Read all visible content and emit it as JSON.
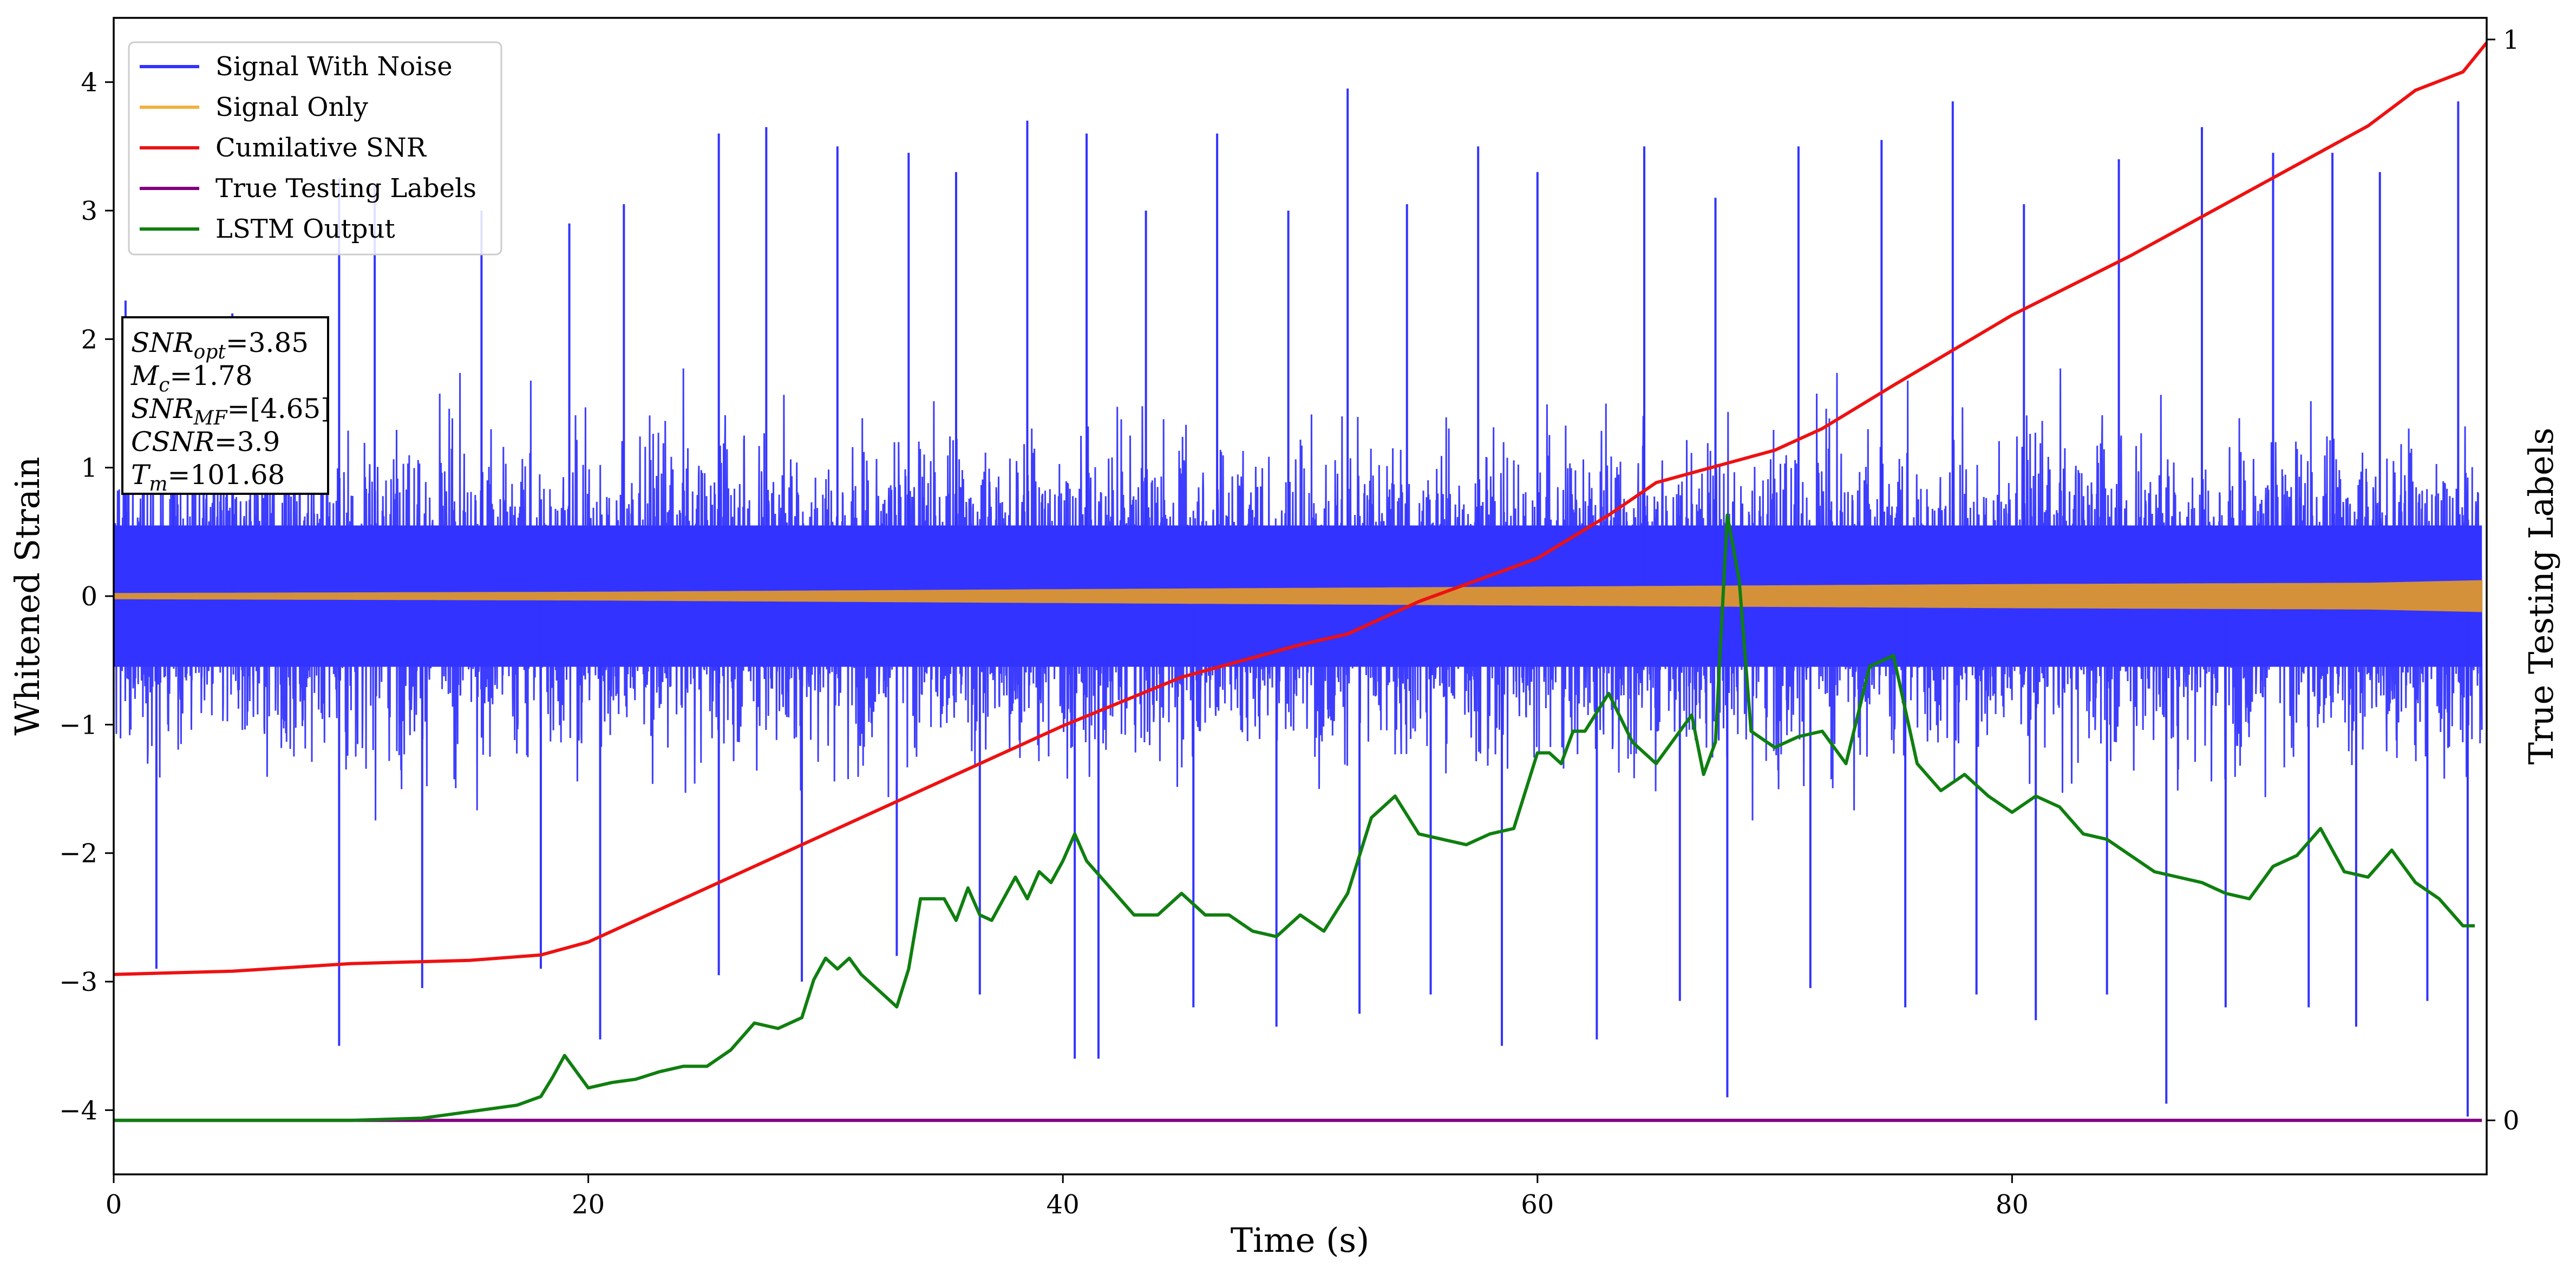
{
  "chart_data": {
    "type": "line",
    "xlabel": "Time (s)",
    "ylabel": "Whitened Strain",
    "y2label": "True Testing Labels",
    "xlim": [
      0,
      100
    ],
    "ylim": [
      -4.5,
      4.5
    ],
    "y2lim": [
      -0.05,
      1.02
    ],
    "xticks": [
      0,
      20,
      40,
      60,
      80
    ],
    "yticks": [
      -4,
      -3,
      -2,
      -1,
      0,
      1,
      2,
      3,
      4
    ],
    "y2ticks": [
      0,
      1
    ],
    "grid": false,
    "legend_position": "upper-left",
    "info_box": {
      "lines": [
        {
          "var": "SNR",
          "sub": "opt",
          "value": "=3.85"
        },
        {
          "var": "M",
          "sub": "c",
          "value": "=1.78"
        },
        {
          "var": "SNR",
          "sub": "MF",
          "value": "=[4.65]"
        },
        {
          "var": "CSNR",
          "sub": "",
          "value": "=3.9"
        },
        {
          "var": "T",
          "sub": "m",
          "value": "=101.68"
        }
      ]
    },
    "series": [
      {
        "name": "Signal With Noise",
        "color": "#3333ff",
        "axis": "left",
        "band": {
          "core": 1.1,
          "max_upper": 3.95,
          "max_lower": -3.95
        },
        "peaks_upper": [
          [
            0.5,
            2.3
          ],
          [
            2.5,
            2.0
          ],
          [
            5.0,
            2.2
          ],
          [
            9.5,
            3.25
          ],
          [
            11.0,
            3.2
          ],
          [
            15.5,
            3.0
          ],
          [
            19.2,
            2.9
          ],
          [
            21.5,
            3.05
          ],
          [
            25.5,
            3.6
          ],
          [
            27.5,
            3.65
          ],
          [
            30.5,
            3.5
          ],
          [
            33.5,
            3.45
          ],
          [
            35.5,
            3.3
          ],
          [
            38.5,
            3.7
          ],
          [
            41.0,
            3.6
          ],
          [
            43.5,
            3.0
          ],
          [
            46.5,
            3.6
          ],
          [
            49.5,
            3.0
          ],
          [
            52.0,
            3.95
          ],
          [
            54.5,
            3.05
          ],
          [
            57.5,
            3.5
          ],
          [
            60.0,
            3.3
          ],
          [
            64.5,
            3.5
          ],
          [
            67.5,
            3.1
          ],
          [
            71.0,
            3.5
          ],
          [
            74.5,
            3.55
          ],
          [
            77.5,
            3.85
          ],
          [
            80.5,
            3.05
          ],
          [
            84.5,
            3.4
          ],
          [
            88.0,
            3.65
          ],
          [
            91.0,
            3.45
          ],
          [
            93.5,
            3.45
          ],
          [
            95.5,
            3.3
          ],
          [
            98.8,
            3.85
          ]
        ],
        "peaks_lower": [
          [
            1.8,
            -2.9
          ],
          [
            9.5,
            -3.5
          ],
          [
            13.0,
            -3.05
          ],
          [
            18.0,
            -2.9
          ],
          [
            20.5,
            -3.45
          ],
          [
            25.5,
            -2.95
          ],
          [
            29.0,
            -3.0
          ],
          [
            33.0,
            -2.8
          ],
          [
            36.5,
            -3.1
          ],
          [
            40.5,
            -3.6
          ],
          [
            41.5,
            -3.6
          ],
          [
            45.5,
            -3.2
          ],
          [
            49.0,
            -3.35
          ],
          [
            52.5,
            -3.25
          ],
          [
            55.5,
            -3.1
          ],
          [
            58.5,
            -3.5
          ],
          [
            62.5,
            -3.45
          ],
          [
            66.0,
            -3.15
          ],
          [
            68.0,
            -3.9
          ],
          [
            71.5,
            -3.05
          ],
          [
            75.5,
            -3.2
          ],
          [
            78.5,
            -3.1
          ],
          [
            81.0,
            -3.3
          ],
          [
            84.0,
            -3.1
          ],
          [
            86.5,
            -3.95
          ],
          [
            89.0,
            -3.2
          ],
          [
            92.5,
            -3.2
          ],
          [
            94.5,
            -3.35
          ],
          [
            97.5,
            -3.15
          ],
          [
            99.2,
            -4.05
          ]
        ]
      },
      {
        "name": "Signal Only",
        "color": "orange",
        "axis": "left",
        "amplitude_envelope": [
          [
            0,
            0.02
          ],
          [
            20,
            0.03
          ],
          [
            40,
            0.05
          ],
          [
            60,
            0.07
          ],
          [
            80,
            0.09
          ],
          [
            95,
            0.1
          ],
          [
            99.8,
            0.12
          ]
        ]
      },
      {
        "name": "Cumilative SNR",
        "color": "red",
        "axis": "right",
        "x": [
          0,
          5,
          10,
          15,
          18,
          20,
          22,
          25,
          30,
          35,
          40,
          45,
          50,
          52,
          55,
          60,
          63,
          65,
          70,
          72,
          75,
          80,
          85,
          90,
          95,
          97,
          99,
          100
        ],
        "values": [
          0.135,
          0.138,
          0.145,
          0.148,
          0.153,
          0.165,
          0.185,
          0.215,
          0.265,
          0.315,
          0.365,
          0.41,
          0.44,
          0.45,
          0.48,
          0.52,
          0.56,
          0.59,
          0.62,
          0.64,
          0.68,
          0.745,
          0.8,
          0.86,
          0.92,
          0.953,
          0.97,
          0.997
        ]
      },
      {
        "name": "True Testing Labels",
        "color": "purple",
        "axis": "right",
        "x": [
          0,
          99.8
        ],
        "values": [
          0,
          0
        ]
      },
      {
        "name": "LSTM Output",
        "color": "green",
        "axis": "right",
        "x": [
          0,
          10,
          13,
          15,
          17,
          18,
          18.5,
          19,
          19.5,
          20,
          21,
          22,
          23,
          24,
          25,
          26,
          27,
          28,
          29,
          29.5,
          30,
          30.5,
          31,
          31.5,
          32,
          33,
          33.5,
          34,
          35,
          35.5,
          36,
          36.5,
          37,
          38,
          38.5,
          39,
          39.5,
          40,
          40.5,
          41,
          42,
          43,
          44,
          45,
          46,
          47,
          48,
          49,
          50,
          51,
          52,
          53,
          53.5,
          54,
          55,
          56,
          57,
          58,
          59,
          60,
          60.5,
          61,
          61.5,
          62,
          63,
          64,
          65,
          66,
          66.5,
          67,
          67.5,
          68,
          68.5,
          69,
          70,
          71,
          72,
          73,
          74,
          75,
          76,
          77,
          78,
          79,
          80,
          81,
          82,
          83,
          84,
          85,
          86,
          87,
          88,
          89,
          90,
          91,
          92,
          93,
          94,
          95,
          96,
          97,
          98,
          99,
          99.5
        ],
        "values": [
          0,
          0,
          0.002,
          0.008,
          0.014,
          0.022,
          0.04,
          0.06,
          0.045,
          0.03,
          0.035,
          0.038,
          0.045,
          0.05,
          0.05,
          0.065,
          0.09,
          0.085,
          0.095,
          0.13,
          0.15,
          0.14,
          0.15,
          0.135,
          0.125,
          0.105,
          0.14,
          0.205,
          0.205,
          0.185,
          0.215,
          0.19,
          0.185,
          0.225,
          0.205,
          0.23,
          0.22,
          0.24,
          0.265,
          0.24,
          0.215,
          0.19,
          0.19,
          0.21,
          0.19,
          0.19,
          0.175,
          0.17,
          0.19,
          0.175,
          0.21,
          0.28,
          0.29,
          0.3,
          0.265,
          0.26,
          0.255,
          0.265,
          0.27,
          0.34,
          0.34,
          0.33,
          0.36,
          0.36,
          0.395,
          0.35,
          0.33,
          0.36,
          0.375,
          0.32,
          0.35,
          0.56,
          0.5,
          0.36,
          0.345,
          0.355,
          0.36,
          0.33,
          0.42,
          0.43,
          0.33,
          0.305,
          0.32,
          0.3,
          0.285,
          0.3,
          0.29,
          0.265,
          0.26,
          0.245,
          0.23,
          0.225,
          0.22,
          0.21,
          0.205,
          0.235,
          0.245,
          0.27,
          0.23,
          0.225,
          0.25,
          0.22,
          0.205,
          0.18,
          0.18
        ]
      }
    ]
  }
}
